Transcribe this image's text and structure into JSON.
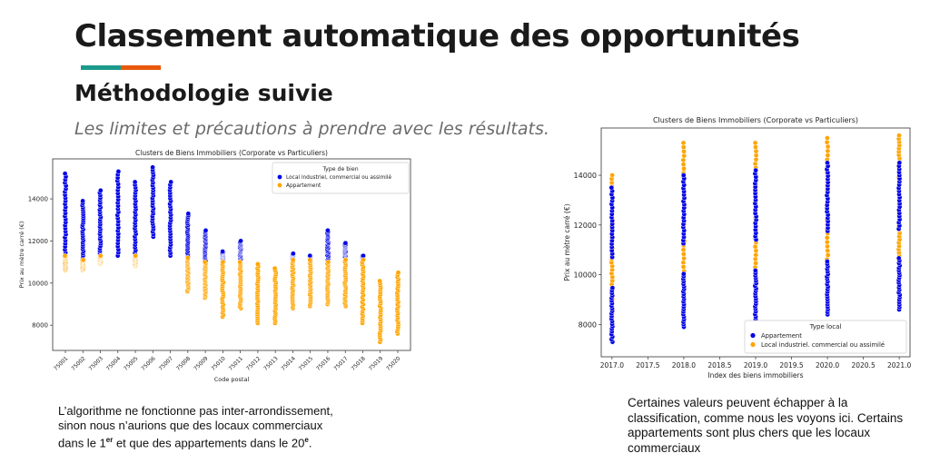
{
  "slide": {
    "title": "Classement automatique des opportunités",
    "subtitle": "Méthodologie suivie",
    "lead": "Les limites et précautions à prendre avec les résultats.",
    "accent_colors": [
      "#1a9a8b",
      "#e8590c"
    ]
  },
  "captions": {
    "left": {
      "line1": "L’algorithme ne fonctionne pas inter-arrondissement,",
      "line2": "sinon nous n’aurions que des locaux commerciaux",
      "line3_pre": "dans le 1",
      "line3_sup1": "er",
      "line3_mid": " et que des appartements dans le 20",
      "line3_sup2": "e",
      "line3_end": "."
    },
    "right": {
      "text": "Certaines valeurs peuvent échapper à la classification, comme nous les voyons ici. Certains appartements sont plus chers que les locaux commerciaux"
    }
  },
  "chart_data": [
    {
      "type": "scatter",
      "title": "Clusters de Biens Immobiliers (Corporate vs Particuliers)",
      "xlabel": "Code postal",
      "ylabel": "Prix au mètre carré (€)",
      "yticks": [
        8000,
        10000,
        12000,
        14000
      ],
      "ylim": [
        6800,
        15900
      ],
      "categories": [
        "75001",
        "75002",
        "75003",
        "75004",
        "75005",
        "75006",
        "75007",
        "75008",
        "75009",
        "75010",
        "75011",
        "75012",
        "75013",
        "75014",
        "75015",
        "75016",
        "75017",
        "75018",
        "75019",
        "75020"
      ],
      "legend": {
        "title": "Type de bien",
        "position": "top-right"
      },
      "series": [
        {
          "name": "Local industriel, commercial ou assimilé",
          "color": "#0000e6",
          "ranges": [
            [
              11300,
              15200
            ],
            [
              11100,
              13900
            ],
            [
              11300,
              14400
            ],
            [
              11300,
              15300
            ],
            [
              11300,
              14800
            ],
            [
              12200,
              15500
            ],
            [
              11300,
              14800
            ],
            [
              11200,
              13300
            ],
            [
              11000,
              12500
            ],
            [
              11000,
              11500
            ],
            [
              11000,
              12000
            ],
            null,
            null,
            [
              11100,
              11400
            ],
            [
              11100,
              11300
            ],
            [
              11000,
              12500
            ],
            [
              11100,
              11900
            ],
            [
              11100,
              11300
            ],
            null,
            null
          ]
        },
        {
          "name": "Appartement",
          "color": "#ffa500",
          "ranges": [
            [
              10600,
              11300
            ],
            [
              10600,
              11100
            ],
            [
              10900,
              11300
            ],
            null,
            [
              10800,
              11300
            ],
            null,
            null,
            [
              9600,
              11200
            ],
            [
              9300,
              11000
            ],
            [
              8400,
              11000
            ],
            [
              8800,
              11000
            ],
            [
              8100,
              10900
            ],
            [
              8100,
              10700
            ],
            [
              8800,
              11100
            ],
            [
              8900,
              11100
            ],
            [
              9000,
              11000
            ],
            [
              8900,
              11100
            ],
            [
              8100,
              11100
            ],
            [
              7200,
              10100
            ],
            [
              7600,
              10500
            ]
          ]
        }
      ]
    },
    {
      "type": "scatter",
      "title": "Clusters de Biens Immobiliers (Corporate vs Particuliers)",
      "xlabel": "Index des biens immobiliers",
      "ylabel": "Prix au mètre carré (€)",
      "yticks": [
        8000,
        10000,
        12000,
        14000
      ],
      "ylim": [
        6700,
        15900
      ],
      "xticks": [
        "2017.0",
        "2017.5",
        "2018.0",
        "2018.5",
        "2019.0",
        "2019.5",
        "2020.0",
        "2020.5",
        "2021.0"
      ],
      "xlim": [
        2016.85,
        2021.15
      ],
      "xvalues": [
        2017.0,
        2018.0,
        2019.0,
        2020.0,
        2021.0
      ],
      "legend": {
        "title": "Type local",
        "position": "bottom-right"
      },
      "series": [
        {
          "name": "Appartement",
          "color": "#0000e6",
          "ranges": [
            [
              7300,
              13500
            ],
            [
              7900,
              14000
            ],
            [
              8000,
              14200
            ],
            [
              8400,
              14500
            ],
            [
              8600,
              14500
            ]
          ]
        },
        {
          "name": "Local industriel. commercial ou assimilé",
          "color": "#ffa500",
          "ranges": [
            [
              8300,
              14000
            ],
            [
              8600,
              15300
            ],
            [
              8800,
              15300
            ],
            [
              8700,
              15500
            ],
            [
              10500,
              15600
            ]
          ]
        }
      ]
    }
  ]
}
